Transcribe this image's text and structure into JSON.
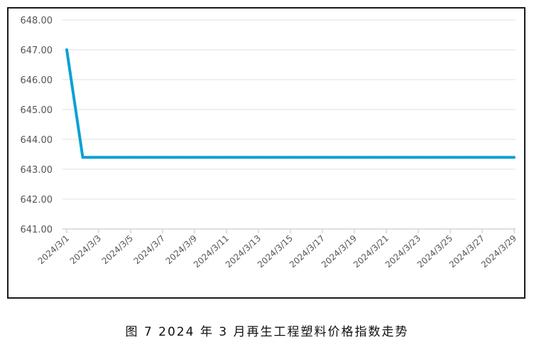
{
  "caption": "图 7  2024 年 3 月再生工程塑料价格指数走势",
  "colors": {
    "line": "#0aa1d3",
    "grid": "#e2e2e2",
    "axis": "#bfbfbf",
    "text": "#555555"
  },
  "chart_data": {
    "type": "line",
    "title": "",
    "xlabel": "",
    "ylabel": "",
    "ylim": [
      641,
      648
    ],
    "yticks": [
      "641.00",
      "642.00",
      "643.00",
      "644.00",
      "645.00",
      "646.00",
      "647.00",
      "648.00"
    ],
    "x_tick_labels": [
      "2024/3/1",
      "2024/3/3",
      "2024/3/5",
      "2024/3/7",
      "2024/3/9",
      "2024/3/11",
      "2024/3/13",
      "2024/3/15",
      "2024/3/17",
      "2024/3/19",
      "2024/3/21",
      "2024/3/23",
      "2024/3/25",
      "2024/3/27",
      "2024/3/29"
    ],
    "categories": [
      "2024/3/1",
      "2024/3/2",
      "2024/3/3",
      "2024/3/4",
      "2024/3/5",
      "2024/3/6",
      "2024/3/7",
      "2024/3/8",
      "2024/3/9",
      "2024/3/10",
      "2024/3/11",
      "2024/3/12",
      "2024/3/13",
      "2024/3/14",
      "2024/3/15",
      "2024/3/16",
      "2024/3/17",
      "2024/3/18",
      "2024/3/19",
      "2024/3/20",
      "2024/3/21",
      "2024/3/22",
      "2024/3/23",
      "2024/3/24",
      "2024/3/25",
      "2024/3/26",
      "2024/3/27",
      "2024/3/28",
      "2024/3/29"
    ],
    "values": [
      647.0,
      643.4,
      643.4,
      643.4,
      643.4,
      643.4,
      643.4,
      643.4,
      643.4,
      643.4,
      643.4,
      643.4,
      643.4,
      643.4,
      643.4,
      643.4,
      643.4,
      643.4,
      643.4,
      643.4,
      643.4,
      643.4,
      643.4,
      643.4,
      643.4,
      643.4,
      643.4,
      643.4,
      643.4
    ],
    "grid": true,
    "legend": "none"
  }
}
